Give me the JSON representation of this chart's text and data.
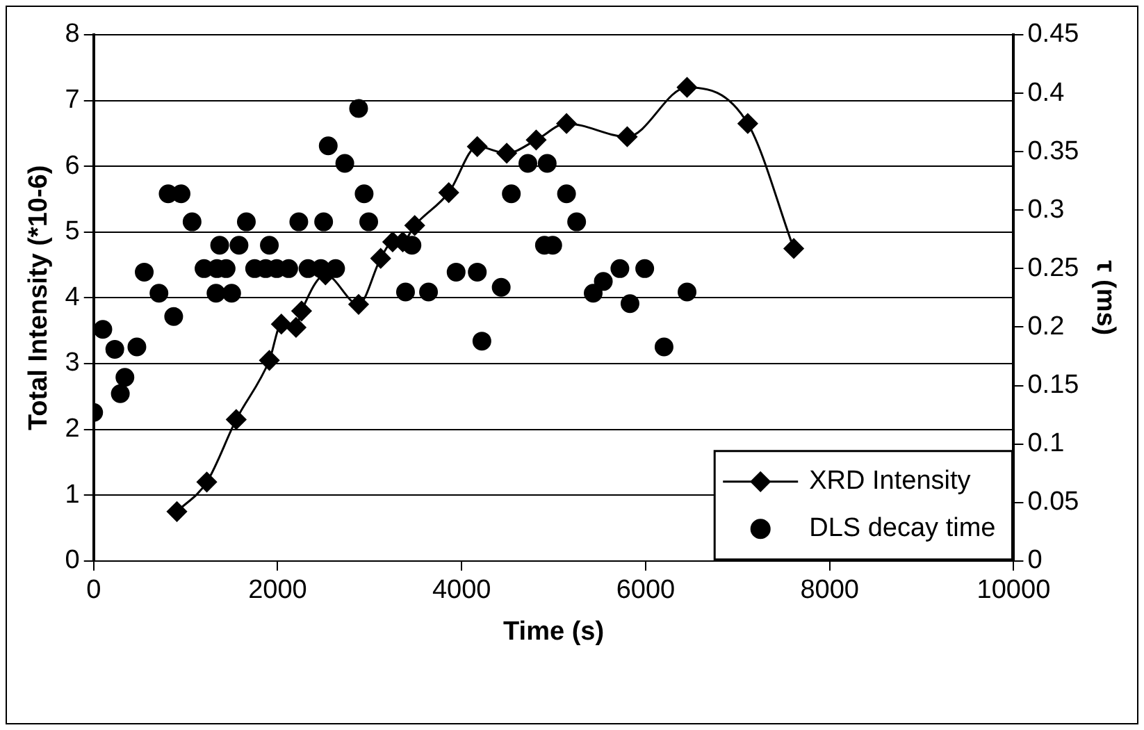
{
  "chart_data": {
    "type": "line",
    "xlabel": "Time (s)",
    "ylabel": "Total Intensity (*10-6)",
    "y2label": "τ (ms)",
    "xlim": [
      0,
      10000
    ],
    "xticks": [
      0,
      2000,
      4000,
      6000,
      8000,
      10000
    ],
    "ylim": [
      0,
      8
    ],
    "yticks": [
      0,
      1,
      2,
      3,
      4,
      5,
      6,
      7,
      8
    ],
    "y2lim": [
      0,
      0.45
    ],
    "y2ticks": [
      0,
      0.05,
      0.1,
      0.15,
      0.2,
      0.25,
      0.3,
      0.35,
      0.4,
      0.45
    ],
    "grid": "y",
    "legend": "bottom right",
    "line_style": "solid",
    "series": [
      {
        "name": "XRD Intensity",
        "marker": "diamond",
        "color": "#000000",
        "x": [
          905,
          1230,
          1550,
          1910,
          2040,
          2200,
          2260,
          2520,
          2880,
          3120,
          3250,
          3360,
          3490,
          3860,
          4170,
          4490,
          4810,
          5140,
          5800,
          6450,
          7110,
          7610
        ],
        "values": [
          0.75,
          1.2,
          2.15,
          3.05,
          3.6,
          3.55,
          3.8,
          4.35,
          3.9,
          4.6,
          4.85,
          4.85,
          5.1,
          5.6,
          6.3,
          6.2,
          6.4,
          6.65,
          6.45,
          7.2,
          6.65,
          4.75
        ]
      },
      {
        "name": "DLS decay time",
        "type": "scatter",
        "marker": "circle",
        "axis": "y2",
        "color": "#000000",
        "x": [
          0,
          100,
          230,
          290,
          340,
          470,
          550,
          710,
          810,
          950,
          870,
          1070,
          1200,
          1340,
          1440,
          1330,
          1500,
          1370,
          1580,
          1660,
          1750,
          1910,
          1870,
          1990,
          2120,
          2230,
          2330,
          2500,
          2470,
          2630,
          2550,
          2730,
          2880,
          2940,
          2990,
          3390,
          3460,
          3640,
          3940,
          4170,
          4220,
          4430,
          4540,
          4720,
          4930,
          4900,
          4990,
          5140,
          5250,
          5430,
          5540,
          5720,
          5830,
          5990,
          6200,
          6450
        ],
        "values": [
          0.127,
          0.198,
          0.181,
          0.143,
          0.157,
          0.183,
          0.247,
          0.229,
          0.314,
          0.314,
          0.209,
          0.29,
          0.25,
          0.25,
          0.25,
          0.229,
          0.229,
          0.27,
          0.27,
          0.29,
          0.25,
          0.27,
          0.25,
          0.25,
          0.25,
          0.29,
          0.25,
          0.29,
          0.25,
          0.25,
          0.355,
          0.34,
          0.387,
          0.314,
          0.29,
          0.23,
          0.27,
          0.23,
          0.247,
          0.247,
          0.188,
          0.234,
          0.314,
          0.34,
          0.34,
          0.27,
          0.27,
          0.314,
          0.29,
          0.229,
          0.239,
          0.25,
          0.22,
          0.25,
          0.183,
          0.23
        ]
      }
    ]
  }
}
